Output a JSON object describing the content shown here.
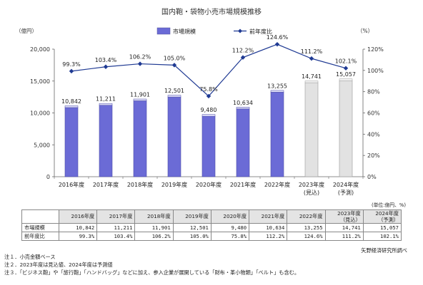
{
  "chart_data": {
    "type": "bar+line",
    "title": "国内鞄・袋物小売市場規模推移",
    "ylabel_left": "（億円）",
    "ylabel_right": "（%）",
    "ylim_left": [
      0,
      20000
    ],
    "ylim_right": [
      0,
      120
    ],
    "left_ticks": [
      "0",
      "5,000",
      "10,000",
      "15,000",
      "20,000"
    ],
    "right_ticks": [
      "0%",
      "20%",
      "40%",
      "60%",
      "80%",
      "100%",
      "120%"
    ],
    "legend": {
      "bar": "市場規模",
      "line": "前年度比",
      "placement": "top-center"
    },
    "categories": [
      {
        "line1": "2016年度",
        "line2": ""
      },
      {
        "line1": "2017年度",
        "line2": ""
      },
      {
        "line1": "2018年度",
        "line2": ""
      },
      {
        "line1": "2019年度",
        "line2": ""
      },
      {
        "line1": "2020年度",
        "line2": ""
      },
      {
        "line1": "2021年度",
        "line2": ""
      },
      {
        "line1": "2022年度",
        "line2": ""
      },
      {
        "line1": "2023年度",
        "line2": "(見込)"
      },
      {
        "line1": "2024年度",
        "line2": "(予測)"
      }
    ],
    "series": [
      {
        "name": "市場規模",
        "kind": "bar",
        "values": [
          10842,
          11211,
          11901,
          12501,
          9480,
          10634,
          13255,
          14741,
          15057
        ],
        "labels": [
          "10,842",
          "11,211",
          "11,901",
          "12,501",
          "9,480",
          "10,634",
          "13,255",
          "14,741",
          "15,057"
        ],
        "estimate": [
          false,
          false,
          false,
          false,
          false,
          false,
          false,
          true,
          true
        ]
      },
      {
        "name": "前年度比",
        "kind": "line",
        "values": [
          99.3,
          103.4,
          106.2,
          105.0,
          75.8,
          112.2,
          124.6,
          111.2,
          102.1
        ],
        "labels": [
          "99.3%",
          "103.4%",
          "106.2%",
          "105.0%",
          "75.8%",
          "112.2%",
          "124.6%",
          "111.2%",
          "102.1%"
        ]
      }
    ],
    "grid": false,
    "colors": {
      "bar": "#6b6bd6",
      "bar_top": "#dcdcf5",
      "bar_est": "#e2e2e2",
      "line": "#1f3a93"
    }
  },
  "table": {
    "headers": [
      {
        "line1": "2016年度",
        "line2": ""
      },
      {
        "line1": "2017年度",
        "line2": ""
      },
      {
        "line1": "2018年度",
        "line2": ""
      },
      {
        "line1": "2019年度",
        "line2": ""
      },
      {
        "line1": "2020年度",
        "line2": ""
      },
      {
        "line1": "2021年度",
        "line2": ""
      },
      {
        "line1": "2022年度",
        "line2": ""
      },
      {
        "line1": "2023年度",
        "line2": "（見込）"
      },
      {
        "line1": "2024年度",
        "line2": "（予測）"
      }
    ],
    "rows": [
      {
        "label": "市場規模",
        "cells": [
          "10,842",
          "11,211",
          "11,901",
          "12,501",
          "9,480",
          "10,634",
          "13,255",
          "14,741",
          "15,057"
        ]
      },
      {
        "label": "前年度比",
        "cells": [
          "99.3%",
          "103.4%",
          "106.2%",
          "105.0%",
          "75.8%",
          "112.2%",
          "124.6%",
          "111.2%",
          "102.1%"
        ]
      }
    ]
  },
  "unit_note": "(単位:億円、%)",
  "source": "矢野経済研究所調べ",
  "notes": [
    "注１．小売金額ベース",
    "注２．2023年度は見込値、2024年度は予測値",
    "注３．「ビジネス鞄」や「旅行鞄」「ハンドバッグ」などに加え、参入企業が展開している「財布・革小物類」「ベルト」も含む。"
  ]
}
